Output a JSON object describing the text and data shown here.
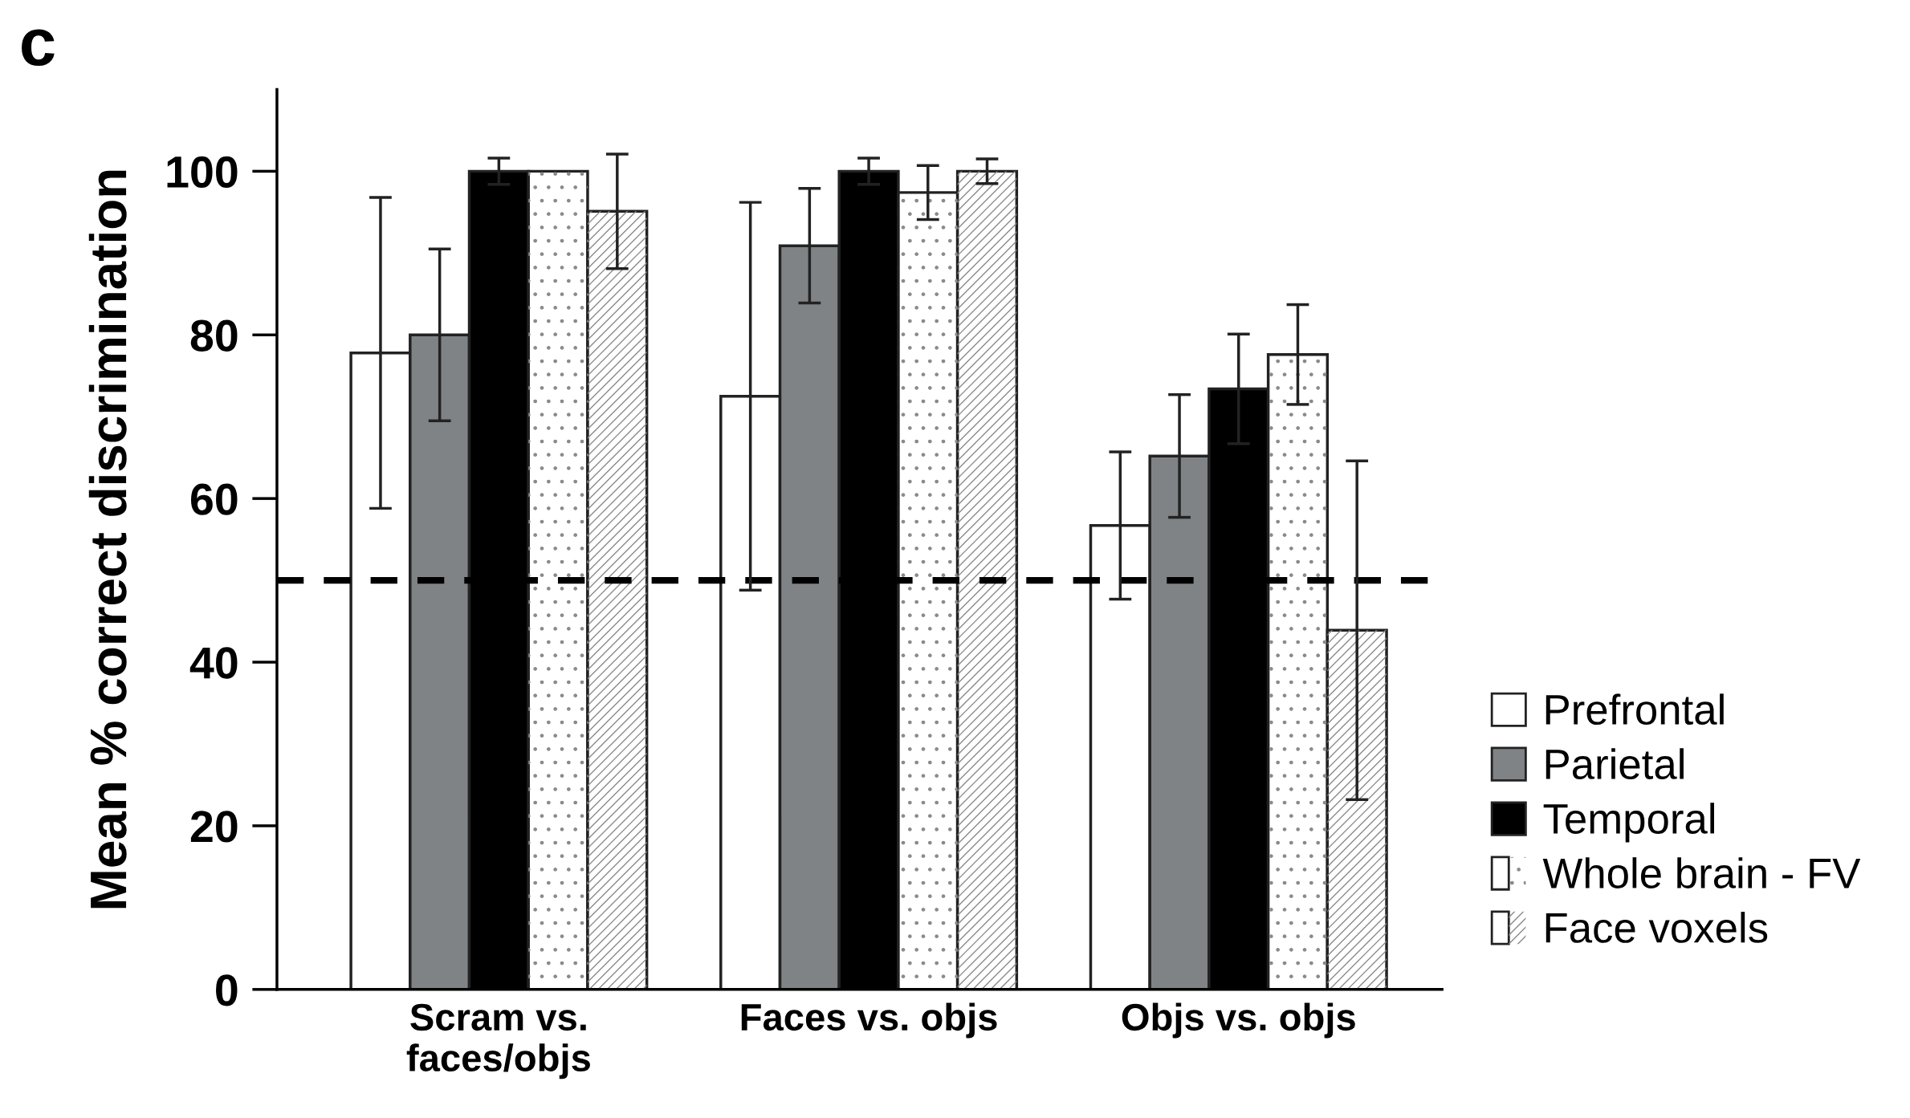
{
  "chart_data": {
    "type": "bar",
    "title": "c",
    "ylabel": "Mean % correct discrimination",
    "categories": [
      "Scram vs.\nfaces/objs",
      "Faces vs. objs",
      "Objs vs. objs"
    ],
    "series": [
      {
        "name": "Prefrontal",
        "color": "#ffffff",
        "values": [
          77.8,
          72.5,
          56.7
        ],
        "errors": [
          19,
          23.7,
          9
        ]
      },
      {
        "name": "Parietal",
        "color": "#7f8385",
        "values": [
          80,
          90.9,
          65.2
        ],
        "errors": [
          10.5,
          7,
          7.5
        ]
      },
      {
        "name": "Temporal",
        "color": "#000000",
        "values": [
          100,
          100,
          73.4
        ],
        "errors": [
          1.6,
          1.6,
          6.7
        ]
      },
      {
        "name": "Whole brain - FV",
        "color": "#ffffff",
        "values": [
          100,
          97.4,
          77.6
        ],
        "errors": [
          null,
          3.3,
          6.1
        ]
      },
      {
        "name": "Face voxels",
        "color": "#ffffff",
        "values": [
          95.1,
          100,
          43.9
        ],
        "errors": [
          7,
          1.5,
          20.7
        ]
      }
    ],
    "ylim": [
      0,
      110
    ],
    "yticks": [
      0,
      20,
      40,
      60,
      80,
      100
    ],
    "ref_lines": [
      {
        "axis": "y",
        "value": 50,
        "color": "#000000",
        "line_style": "dashed"
      }
    ],
    "grid": false,
    "legend": "right"
  }
}
